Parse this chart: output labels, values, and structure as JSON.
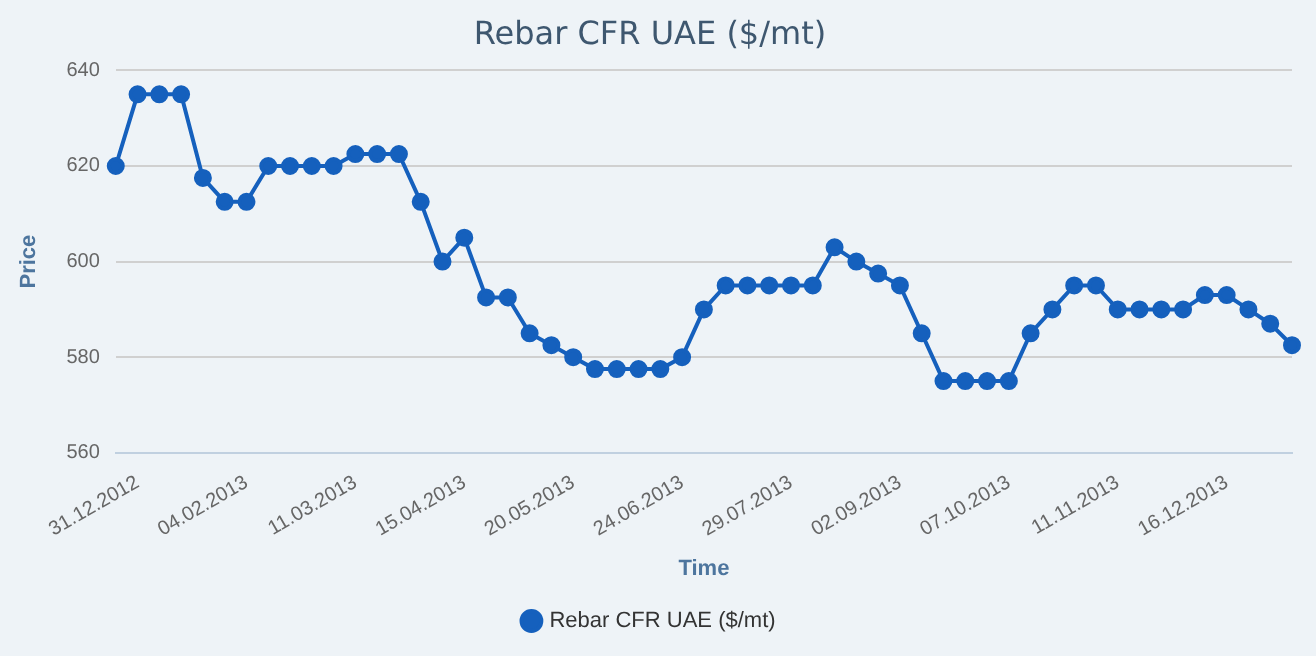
{
  "chart_data": {
    "type": "line",
    "title": "Rebar CFR UAE ($/mt)",
    "xlabel": "Time",
    "ylabel": "Price",
    "categories": [
      null,
      "31.12.2012",
      null,
      null,
      null,
      null,
      "04.02.2013",
      null,
      null,
      null,
      null,
      "11.03.2013",
      null,
      null,
      null,
      null,
      "15.04.2013",
      null,
      null,
      null,
      null,
      "20.05.2013",
      null,
      null,
      null,
      null,
      "24.06.2013",
      null,
      null,
      null,
      null,
      "29.07.2013",
      null,
      null,
      null,
      null,
      "02.09.2013",
      null,
      null,
      null,
      null,
      "07.10.2013",
      null,
      null,
      null,
      null,
      "11.11.2013",
      null,
      null,
      null,
      null,
      "16.12.2013",
      null,
      null,
      null
    ],
    "series": [
      {
        "name": "Rebar CFR UAE ($/mt)",
        "color": "#1560bd",
        "values": [
          620,
          635,
          635,
          635,
          617.5,
          612.5,
          612.5,
          620,
          620,
          620,
          620,
          622.5,
          622.5,
          622.5,
          612.5,
          600,
          605,
          592.5,
          592.5,
          585,
          582.5,
          580,
          577.5,
          577.5,
          577.5,
          577.5,
          580,
          590,
          595,
          595,
          595,
          595,
          595,
          603,
          600,
          597.5,
          595,
          585,
          575,
          575,
          575,
          575,
          585,
          590,
          595,
          595,
          590,
          590,
          590,
          590,
          593,
          593,
          590,
          587,
          582.5
        ]
      }
    ],
    "ylim": [
      560,
      640
    ],
    "yticks": [
      560,
      580,
      600,
      620,
      640
    ],
    "grid": "y",
    "legend": "bottom",
    "marker": "circle",
    "line_style": "solid"
  }
}
